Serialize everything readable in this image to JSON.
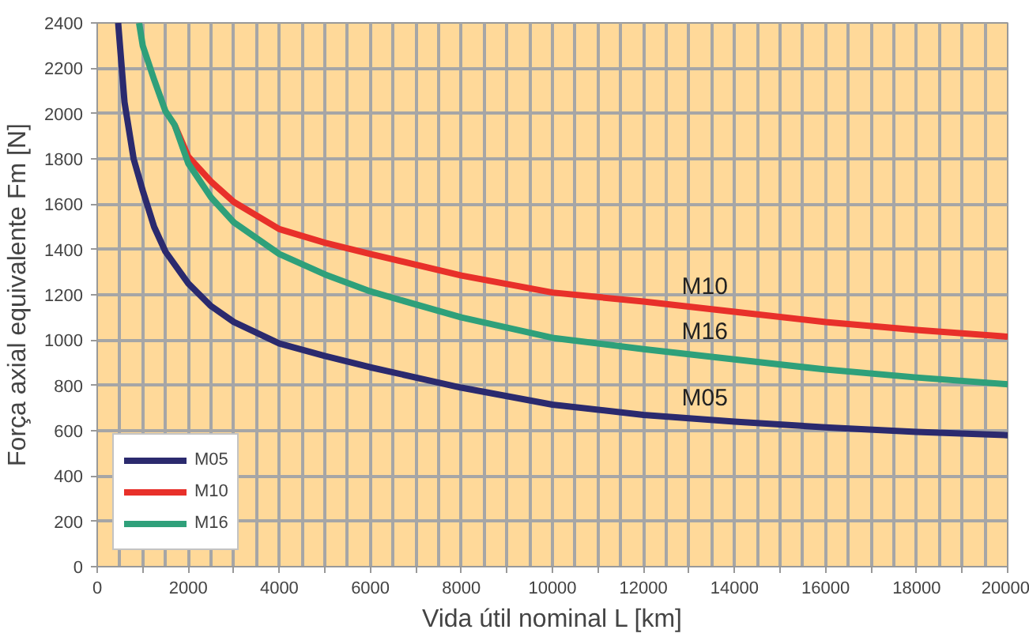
{
  "chart_data": {
    "type": "line",
    "xlabel": "Vida útil nominal L [km]",
    "ylabel": "Força axial equivalente Fm [N]",
    "xlim": [
      0,
      20000
    ],
    "ylim": [
      0,
      2400
    ],
    "xticks": [
      0,
      {
        "value": 1000,
        "label": null
      },
      2000,
      {
        "value": 3000,
        "label": null
      },
      4000,
      {
        "value": 5000,
        "label": null
      },
      6000,
      {
        "value": 7000,
        "label": null
      },
      8000,
      {
        "value": 9000,
        "label": null
      },
      10000,
      {
        "value": 11000,
        "label": null
      },
      12000,
      {
        "value": 13000,
        "label": null
      },
      14000,
      {
        "value": 15000,
        "label": null
      },
      16000,
      {
        "value": 17000,
        "label": null
      },
      18000,
      {
        "value": 19000,
        "label": null
      },
      20000
    ],
    "yticks": [
      0,
      200,
      400,
      600,
      800,
      1000,
      1200,
      1400,
      1600,
      1800,
      2000,
      2200,
      2400
    ],
    "grid": true,
    "legend": "bottom left",
    "marker": "none",
    "line_style": "solid",
    "series": [
      {
        "name": "M05",
        "color": "#2b2a6e",
        "x": [
          460,
          600,
          800,
          1000,
          1250,
          1500,
          2000,
          2500,
          3000,
          4000,
          5000,
          6000,
          8000,
          10000,
          12000,
          14000,
          16000,
          18000,
          20000
        ],
        "values": [
          2400,
          2050,
          1800,
          1660,
          1500,
          1390,
          1250,
          1150,
          1080,
          985,
          930,
          880,
          790,
          715,
          670,
          640,
          615,
          595,
          580
        ]
      },
      {
        "name": "M10",
        "color": "#e8302a",
        "x": [
          1700,
          2000,
          2500,
          3000,
          4000,
          5000,
          6000,
          8000,
          10000,
          12000,
          14000,
          16000,
          18000,
          20000
        ],
        "values": [
          1950,
          1810,
          1700,
          1610,
          1490,
          1430,
          1380,
          1285,
          1210,
          1170,
          1125,
          1080,
          1045,
          1015
        ]
      },
      {
        "name": "M16",
        "color": "#2fa07a",
        "x": [
          920,
          1000,
          1250,
          1500,
          1700,
          2000,
          2500,
          3000,
          4000,
          5000,
          6000,
          8000,
          10000,
          12000,
          14000,
          16000,
          18000,
          20000
        ],
        "values": [
          2400,
          2300,
          2150,
          2010,
          1950,
          1780,
          1630,
          1520,
          1380,
          1290,
          1215,
          1100,
          1010,
          960,
          915,
          870,
          835,
          805
        ]
      }
    ],
    "annotations": [
      "M10",
      "M16",
      "M05"
    ]
  }
}
